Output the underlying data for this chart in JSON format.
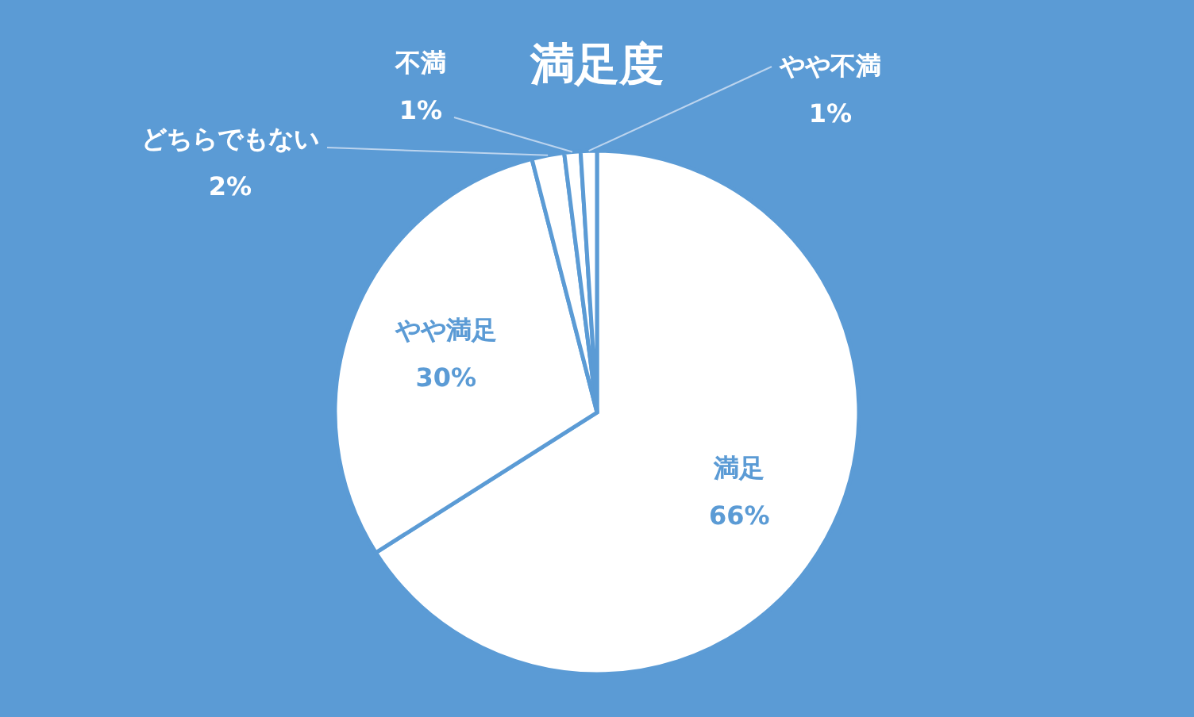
{
  "chart_data": {
    "type": "pie",
    "title": "満足度",
    "categories": [
      "満足",
      "やや満足",
      "どちらでもない",
      "不満",
      "やや不満"
    ],
    "values": [
      66,
      30,
      2,
      1,
      1
    ],
    "value_labels": [
      "66%",
      "30%",
      "2%",
      "1%",
      "1%"
    ],
    "colors": [
      "#ffffff",
      "#ffffff",
      "#ffffff",
      "#ffffff",
      "#ffffff"
    ]
  }
}
